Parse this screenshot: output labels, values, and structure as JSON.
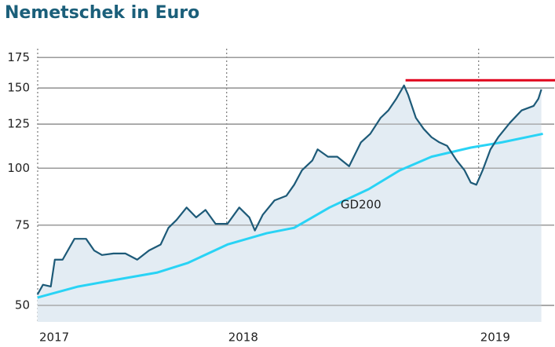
{
  "chart_data": {
    "type": "line",
    "title": "Nemetschek in Euro",
    "log_scale": true,
    "xlim": [
      2017.25,
      2019.3
    ],
    "xticks": [
      {
        "value": 2017.25,
        "label": "2017"
      },
      2018,
      2019
    ],
    "ylim": [
      46,
      183
    ],
    "yticks": [
      50,
      75,
      100,
      125,
      150,
      175
    ],
    "grid": true,
    "area_color": "#e3ecf3",
    "series": [
      {
        "color": "#1d5a78",
        "x": [
          2017.249,
          2017.271,
          2017.302,
          2017.318,
          2017.349,
          2017.396,
          2017.442,
          2017.474,
          2017.505,
          2017.551,
          2017.598,
          2017.645,
          2017.692,
          2017.738,
          2017.769,
          2017.801,
          2017.841,
          2017.879,
          2017.916,
          2017.956,
          2018.003,
          2018.05,
          2018.09,
          2018.112,
          2018.143,
          2018.19,
          2018.237,
          2018.268,
          2018.299,
          2018.34,
          2018.361,
          2018.402,
          2018.439,
          2018.486,
          2018.533,
          2018.57,
          2018.611,
          2018.642,
          2018.673,
          2018.704,
          2018.72,
          2018.751,
          2018.782,
          2018.813,
          2018.844,
          2018.875,
          2018.913,
          2018.944,
          2018.969,
          2018.991,
          2019.016,
          2019.047,
          2019.078,
          2019.125,
          2019.171,
          2019.218,
          2019.237,
          2019.249
        ],
        "values": [
          52.8,
          55.5,
          55,
          63,
          63,
          70,
          70,
          66,
          64.5,
          65,
          65,
          63,
          66,
          68,
          74,
          77,
          82,
          78,
          81,
          75.5,
          75.5,
          82,
          78,
          73,
          79,
          85,
          87,
          92,
          99,
          104,
          110,
          106,
          106,
          101,
          114,
          119,
          129,
          134,
          142,
          152,
          145,
          129,
          122,
          117,
          114,
          112,
          104,
          99,
          93,
          92,
          99,
          110,
          117,
          126,
          134,
          137,
          142,
          149
        ]
      },
      {
        "name": "GD200",
        "color": "#29d3f5",
        "x": [
          2017.249,
          2017.411,
          2017.567,
          2017.723,
          2017.847,
          2018.003,
          2018.159,
          2018.268,
          2018.408,
          2018.564,
          2018.688,
          2018.813,
          2018.969,
          2019.093,
          2019.255
        ],
        "values": [
          52,
          55,
          57,
          59,
          62,
          68,
          72,
          74,
          82,
          90,
          99,
          106,
          111,
          114,
          119
        ]
      }
    ],
    "reference_line": {
      "value": 156,
      "x_start": 2018.71,
      "color": "#e0001b"
    }
  }
}
